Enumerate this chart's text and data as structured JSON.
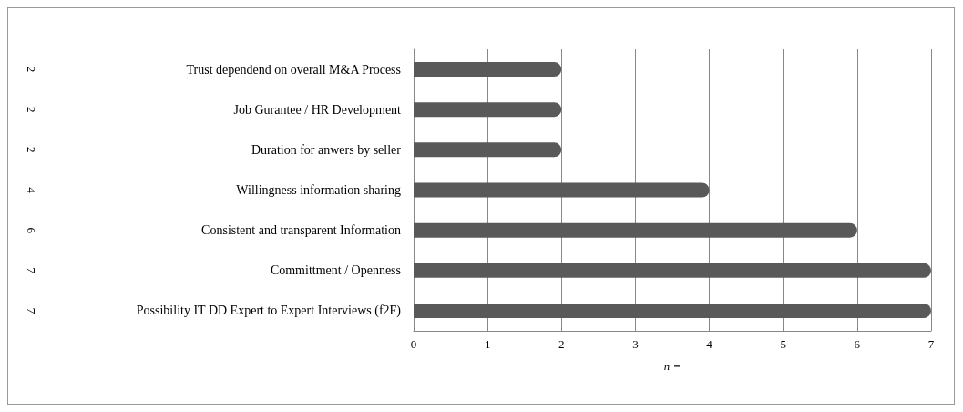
{
  "chart_data": {
    "type": "bar",
    "orientation": "horizontal",
    "xlabel": "n =",
    "categories": [
      "Trust dependend on overall M&A Process",
      "Job Gurantee / HR Development",
      "Duration for anwers by seller",
      "Willingness information sharing",
      "Consistent and transparent Information",
      "Committment / Openness",
      "Possibility IT DD Expert to Expert Interviews (f2F)"
    ],
    "values": [
      2,
      2,
      2,
      4,
      6,
      7,
      7
    ],
    "color": "#595959",
    "xlim": [
      0,
      7
    ],
    "xticks": [
      0,
      1,
      2,
      3,
      4,
      5,
      6,
      7
    ],
    "grid": "x",
    "data_labels": true
  }
}
